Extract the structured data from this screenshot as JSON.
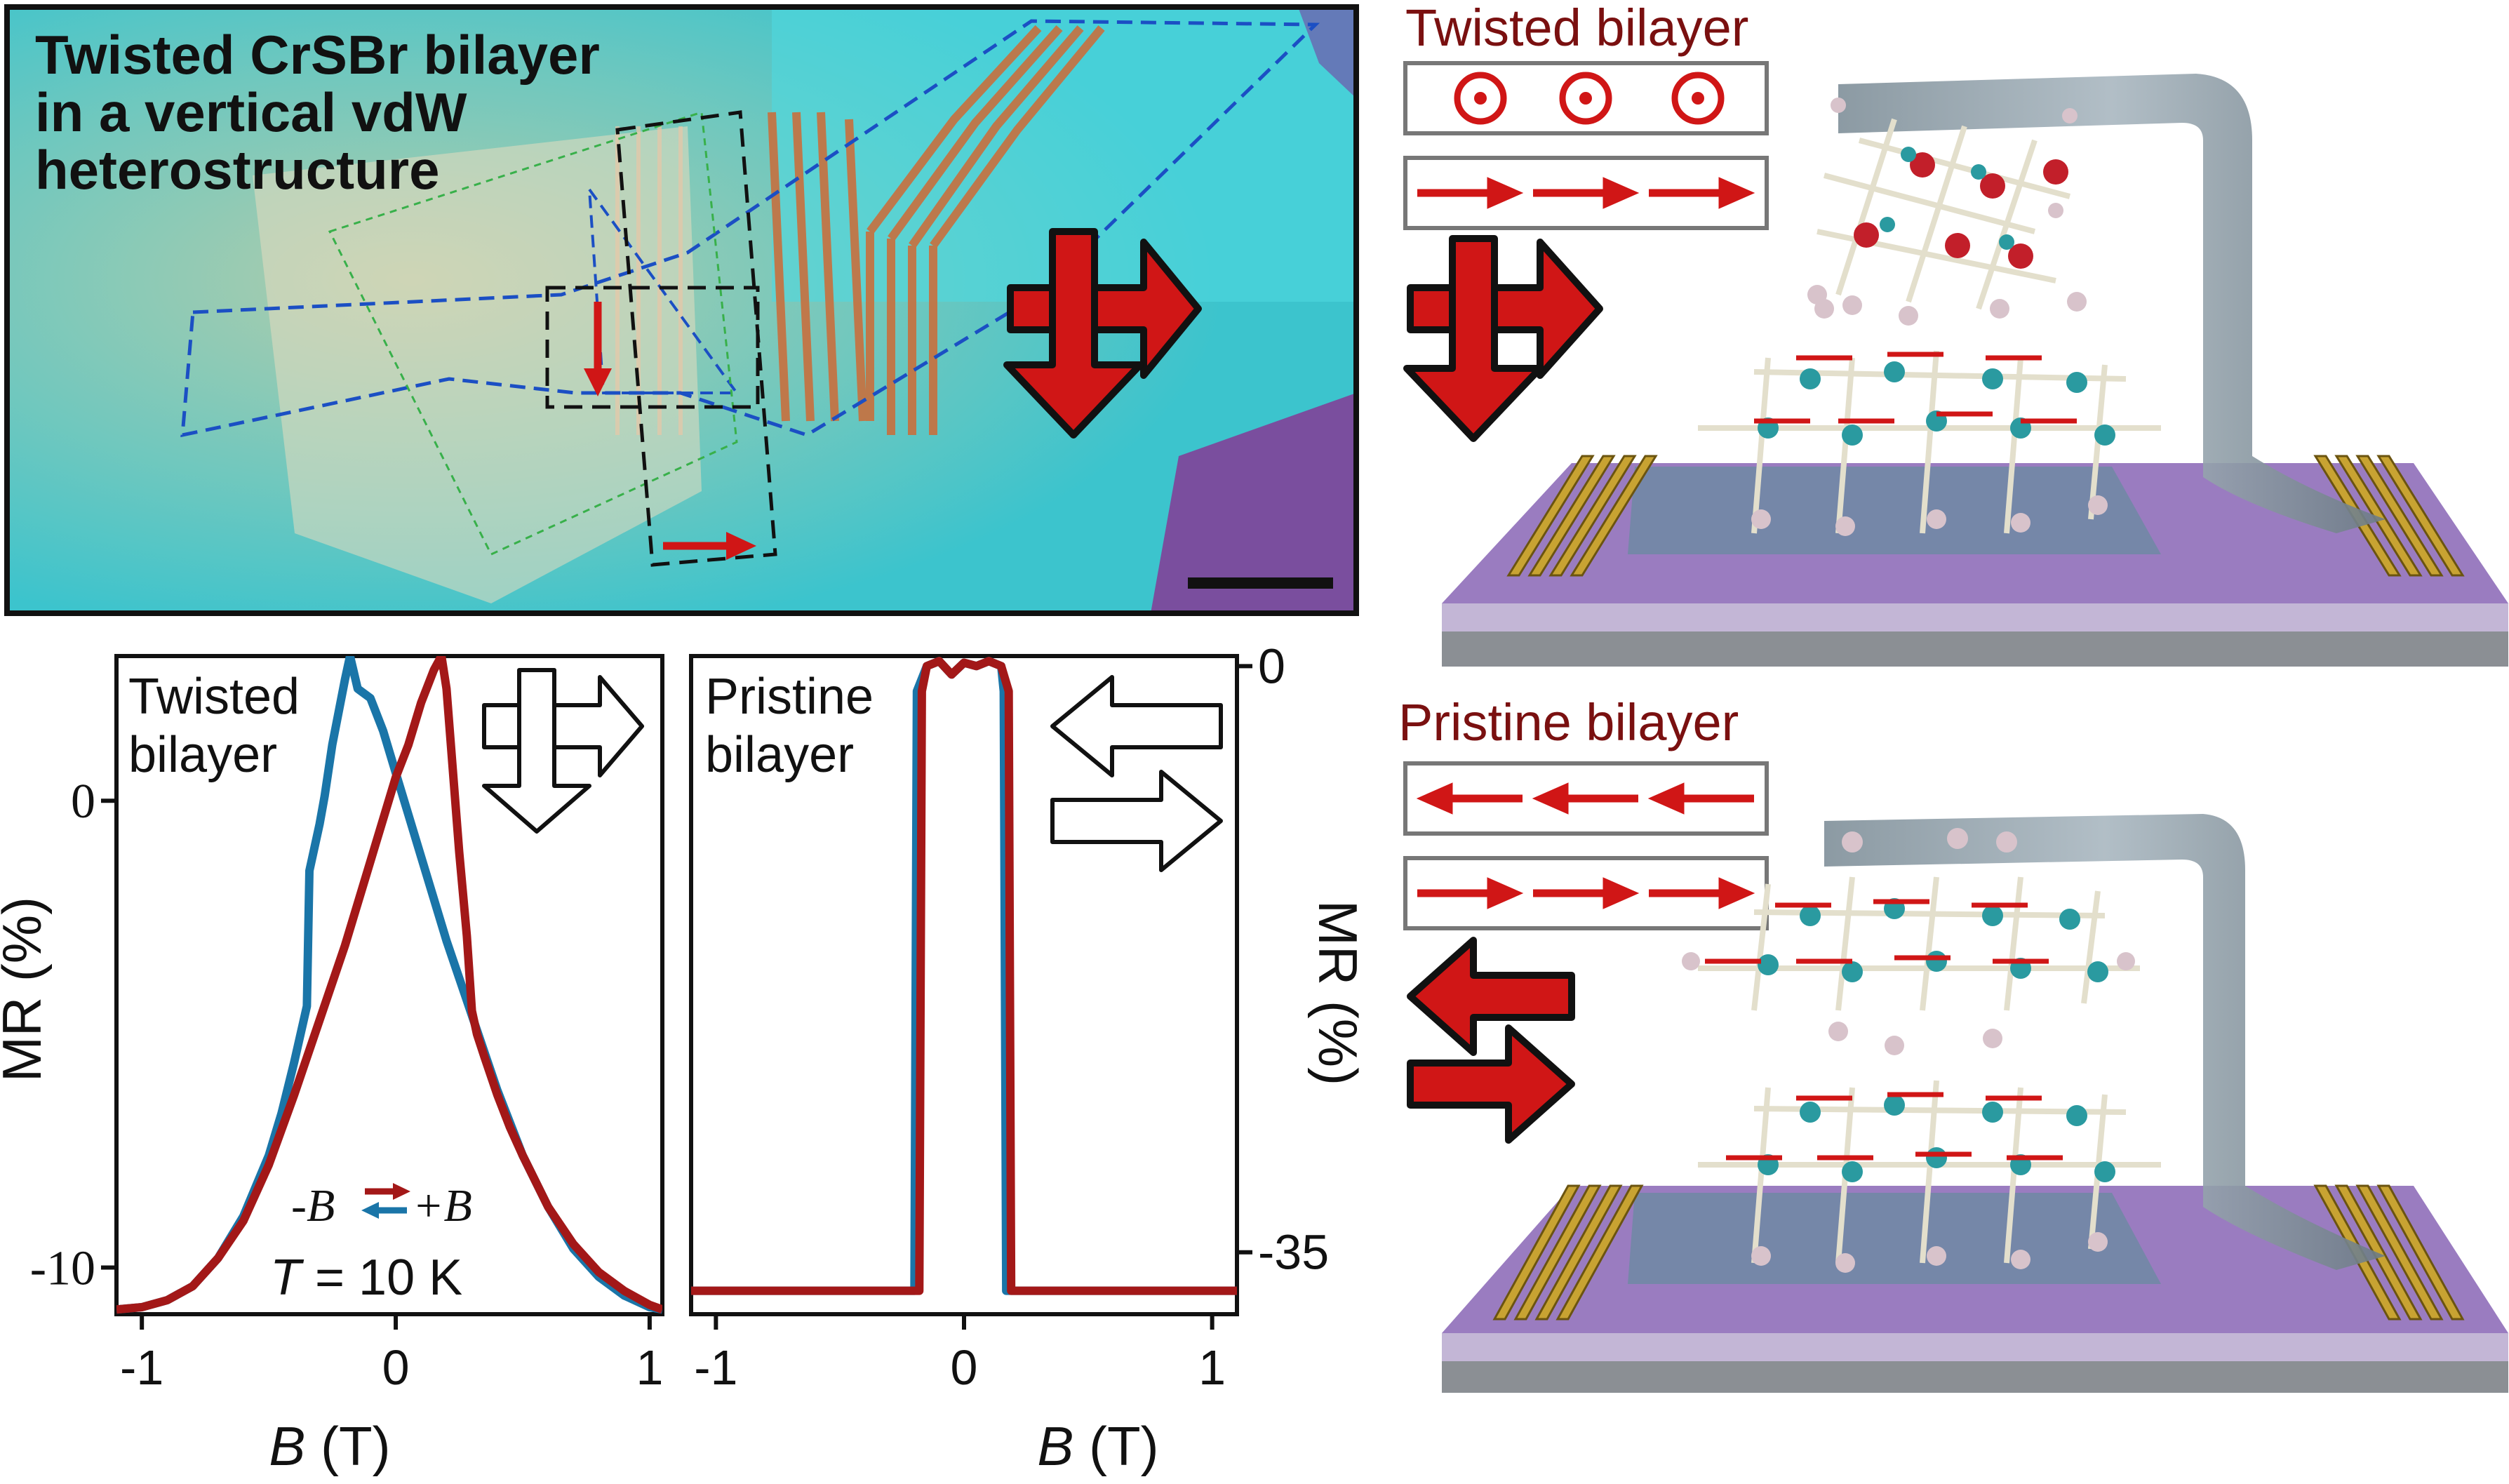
{
  "micrograph": {
    "title_lines": [
      "Twisted CrSBr bilayer",
      "in a vertical vdW",
      "heterostructure"
    ]
  },
  "device_twisted": {
    "title": "Twisted bilayer"
  },
  "device_pristine": {
    "title": "Pristine bilayer"
  },
  "chart_left": {
    "label_lines": [
      "Twisted",
      "bilayer"
    ],
    "xlabel_var": "B",
    "xlabel_unit": " (T)",
    "ylabel": "MR (%)",
    "sweep_minus": "-B",
    "sweep_plus": "+B",
    "temp_var": "T",
    "temp_value": " = 10 K"
  },
  "chart_right": {
    "label_lines": [
      "Pristine",
      "bilayer"
    ],
    "xlabel_var": "B",
    "xlabel_unit": " (T)",
    "ylabel": "MR (%)"
  },
  "chart_data": [
    {
      "type": "line",
      "title": "",
      "xlabel": "B (T)",
      "ylabel": "MR (%)",
      "xlim": [
        -1.1,
        1.05
      ],
      "ylim": [
        -11.0,
        3.1
      ],
      "x_ticks": [
        -1,
        0,
        1
      ],
      "y_ticks": [
        0,
        -10
      ],
      "tick_labels_x": [
        "-1",
        "0",
        "1"
      ],
      "tick_labels_y": [
        "0",
        "-10"
      ],
      "series": [
        {
          "color": "#1a75a8",
          "x": [
            -1.1,
            -1.0,
            -0.9,
            -0.8,
            -0.7,
            -0.6,
            -0.5,
            -0.45,
            -0.4,
            -0.35,
            -0.34,
            -0.3,
            -0.28,
            -0.25,
            -0.2,
            -0.18,
            -0.15,
            -0.1,
            -0.05,
            0.0,
            0.05,
            0.1,
            0.15,
            0.2,
            0.3,
            0.4,
            0.5,
            0.6,
            0.7,
            0.8,
            0.9,
            1.0,
            1.05
          ],
          "y": [
            -10.9,
            -10.85,
            -10.7,
            -10.4,
            -9.8,
            -8.9,
            -7.6,
            -6.7,
            -5.6,
            -4.4,
            -1.5,
            -0.5,
            0.1,
            1.2,
            2.6,
            3.1,
            2.4,
            2.2,
            1.5,
            0.6,
            -0.3,
            -1.2,
            -2.1,
            -3.0,
            -4.6,
            -6.2,
            -7.6,
            -8.7,
            -9.6,
            -10.2,
            -10.6,
            -10.85,
            -10.9
          ]
        },
        {
          "color": "#a31818",
          "x": [
            -1.1,
            -1.0,
            -0.9,
            -0.8,
            -0.7,
            -0.6,
            -0.5,
            -0.4,
            -0.3,
            -0.2,
            -0.1,
            0.0,
            0.05,
            0.1,
            0.15,
            0.18,
            0.2,
            0.25,
            0.28,
            0.3,
            0.32,
            0.35,
            0.4,
            0.45,
            0.5,
            0.6,
            0.7,
            0.8,
            0.9,
            1.0,
            1.05
          ],
          "y": [
            -10.9,
            -10.85,
            -10.7,
            -10.4,
            -9.8,
            -9.0,
            -7.8,
            -6.3,
            -4.7,
            -3.1,
            -1.3,
            0.5,
            1.2,
            2.1,
            2.8,
            3.1,
            2.4,
            -1.1,
            -2.9,
            -4.5,
            -5.0,
            -5.5,
            -6.3,
            -7.0,
            -7.6,
            -8.7,
            -9.5,
            -10.1,
            -10.5,
            -10.8,
            -10.9
          ]
        }
      ]
    },
    {
      "type": "line",
      "title": "",
      "xlabel": "B (T)",
      "ylabel": "MR (%)",
      "xlim": [
        -1.1,
        1.1
      ],
      "ylim": [
        -38.7,
        0.6
      ],
      "x_ticks": [
        -1,
        0,
        1
      ],
      "y_ticks": [
        0,
        -35
      ],
      "tick_labels_x": [
        "-1",
        "0",
        "1"
      ],
      "tick_labels_y": [
        "0",
        "-35"
      ],
      "series": [
        {
          "color": "#1a75a8",
          "x": [
            -1.1,
            -0.5,
            -0.2,
            -0.19,
            -0.15,
            -0.1,
            -0.05,
            0.0,
            0.05,
            0.1,
            0.15,
            0.16,
            0.17,
            0.5,
            1.1
          ],
          "y": [
            -37.3,
            -37.3,
            -37.3,
            -1.5,
            0.0,
            0.3,
            -0.5,
            0.2,
            0.0,
            0.3,
            0.0,
            -1.5,
            -37.3,
            -37.3,
            -37.3
          ]
        },
        {
          "color": "#a31818",
          "x": [
            -1.1,
            -0.5,
            -0.18,
            -0.17,
            -0.15,
            -0.1,
            -0.05,
            0.0,
            0.05,
            0.1,
            0.15,
            0.18,
            0.19,
            0.5,
            1.1
          ],
          "y": [
            -37.3,
            -37.3,
            -37.3,
            -1.5,
            0.0,
            0.3,
            -0.5,
            0.2,
            0.0,
            0.3,
            0.0,
            -1.5,
            -37.3,
            -37.3,
            -37.3
          ]
        }
      ]
    }
  ]
}
